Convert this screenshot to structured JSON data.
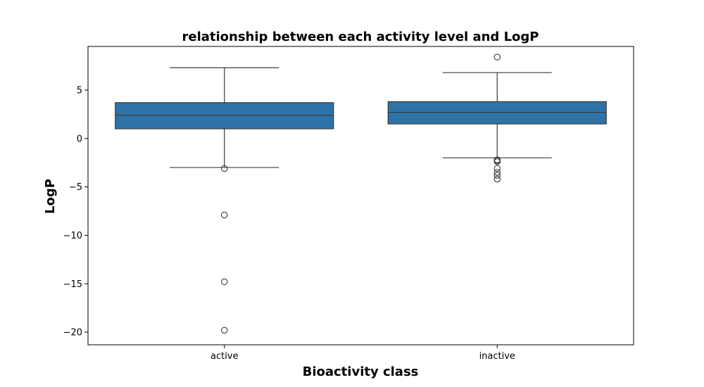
{
  "chart_data": {
    "type": "box",
    "title": "relationship between each activity level and LogP",
    "xlabel": "Bioactivity class",
    "ylabel": "LogP",
    "categories": [
      "active",
      "inactive"
    ],
    "yticks": [
      5,
      0,
      -5,
      -10,
      -15,
      -20
    ],
    "ylim": [
      -21.3,
      9.5
    ],
    "grid": false,
    "box_color": "#2e73a7",
    "line_color": "#3b3b3b",
    "boxes": [
      {
        "category": "active",
        "whisker_low": -3.0,
        "q1": 1.0,
        "median": 2.4,
        "q3": 3.7,
        "whisker_high": 7.3,
        "outliers": [
          -3.1,
          -7.9,
          -14.8,
          -19.8
        ]
      },
      {
        "category": "inactive",
        "whisker_low": -2.0,
        "q1": 1.5,
        "median": 2.7,
        "q3": 3.8,
        "whisker_high": 6.8,
        "outliers": [
          8.4,
          -2.2,
          -2.3,
          -2.4,
          -3.1,
          -3.5,
          -3.8,
          -4.2
        ]
      }
    ]
  }
}
